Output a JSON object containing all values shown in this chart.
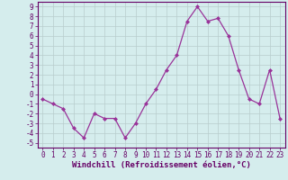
{
  "x": [
    0,
    1,
    2,
    3,
    4,
    5,
    6,
    7,
    8,
    9,
    10,
    11,
    12,
    13,
    14,
    15,
    16,
    17,
    18,
    19,
    20,
    21,
    22,
    23
  ],
  "y": [
    -0.5,
    -1.0,
    -1.5,
    -3.5,
    -4.5,
    -2.0,
    -2.5,
    -2.5,
    -4.5,
    -3.0,
    -1.0,
    0.5,
    2.5,
    4.0,
    7.5,
    9.0,
    7.5,
    7.8,
    6.0,
    2.5,
    -0.5,
    -1.0,
    2.5,
    -2.5
  ],
  "line_color": "#993399",
  "marker": "D",
  "markersize": 2.0,
  "linewidth": 0.9,
  "xlabel": "Windchill (Refroidissement éolien,°C)",
  "ylim": [
    -5.5,
    9.5
  ],
  "xlim": [
    -0.5,
    23.5
  ],
  "yticks": [
    -5,
    -4,
    -3,
    -2,
    -1,
    0,
    1,
    2,
    3,
    4,
    5,
    6,
    7,
    8,
    9
  ],
  "xticks": [
    0,
    1,
    2,
    3,
    4,
    5,
    6,
    7,
    8,
    9,
    10,
    11,
    12,
    13,
    14,
    15,
    16,
    17,
    18,
    19,
    20,
    21,
    22,
    23
  ],
  "bg_color": "#d5eded",
  "grid_color": "#b8cccc",
  "line_border_color": "#660066",
  "xlabel_color": "#660066",
  "tick_color": "#660066",
  "xlabel_fontsize": 6.5,
  "tick_fontsize": 5.5,
  "spine_color": "#660066"
}
